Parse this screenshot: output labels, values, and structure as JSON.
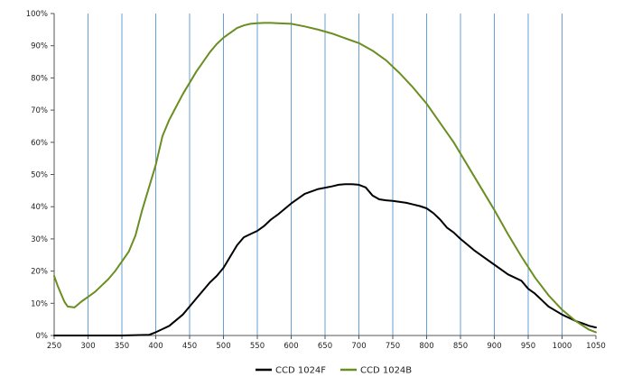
{
  "chart_data": {
    "type": "line",
    "title": "",
    "xlabel": "",
    "ylabel": "",
    "xlim": [
      250,
      1050
    ],
    "ylim": [
      0,
      100
    ],
    "x_ticks": [
      "250",
      "300",
      "350",
      "400",
      "450",
      "500",
      "550",
      "600",
      "650",
      "700",
      "750",
      "800",
      "850",
      "900",
      "950",
      "1000",
      "1050"
    ],
    "y_ticks": [
      "0%",
      "10%",
      "20%",
      "30%",
      "40%",
      "50%",
      "60%",
      "70%",
      "80%",
      "90%",
      "100%"
    ],
    "grid": {
      "vertical": true,
      "horizontal": false
    },
    "legend_position": "bottom",
    "series": [
      {
        "name": "CCD 1024F",
        "color": "#000000",
        "x": [
          250,
          300,
          350,
          390,
          400,
          410,
          420,
          440,
          450,
          460,
          470,
          480,
          490,
          500,
          510,
          520,
          530,
          540,
          550,
          560,
          570,
          580,
          600,
          620,
          640,
          660,
          670,
          680,
          690,
          700,
          710,
          720,
          730,
          740,
          750,
          770,
          780,
          790,
          800,
          810,
          820,
          830,
          840,
          850,
          870,
          880,
          900,
          910,
          920,
          940,
          950,
          960,
          970,
          980,
          1000,
          1010,
          1020,
          1030,
          1040,
          1050
        ],
        "values": [
          0,
          0,
          0,
          0.2,
          1.0,
          2.0,
          3.0,
          6.5,
          9.0,
          11.5,
          14.0,
          16.5,
          18.5,
          21.0,
          24.5,
          28.0,
          30.5,
          31.5,
          32.5,
          34.0,
          36.0,
          37.5,
          41.0,
          44.0,
          45.5,
          46.3,
          46.8,
          47.0,
          47.0,
          46.8,
          46.0,
          43.5,
          42.3,
          42.0,
          41.8,
          41.2,
          40.7,
          40.2,
          39.5,
          38.0,
          36.0,
          33.5,
          32.0,
          30.0,
          26.5,
          25.0,
          22.0,
          20.5,
          19.0,
          17.0,
          14.5,
          13.0,
          11.0,
          9.0,
          6.5,
          5.5,
          4.5,
          3.8,
          3.0,
          2.5
        ]
      },
      {
        "name": "CCD 1024B",
        "color": "#6b8e23",
        "x": [
          250,
          255,
          260,
          265,
          270,
          280,
          290,
          300,
          310,
          320,
          330,
          340,
          350,
          360,
          370,
          380,
          390,
          400,
          410,
          420,
          430,
          440,
          450,
          460,
          470,
          480,
          490,
          500,
          510,
          520,
          530,
          540,
          550,
          560,
          570,
          580,
          600,
          620,
          640,
          660,
          680,
          700,
          720,
          740,
          760,
          780,
          800,
          820,
          840,
          860,
          880,
          900,
          920,
          940,
          960,
          980,
          1000,
          1020,
          1040,
          1050
        ],
        "values": [
          18.5,
          15.5,
          13.0,
          10.5,
          9.0,
          8.7,
          10.5,
          12.0,
          13.5,
          15.5,
          17.5,
          20.0,
          23.0,
          26.0,
          31.0,
          39.0,
          46.0,
          53.0,
          62.0,
          67.0,
          71.0,
          75.0,
          78.5,
          82.0,
          85.0,
          88.0,
          90.5,
          92.5,
          94.0,
          95.5,
          96.3,
          96.8,
          97.0,
          97.1,
          97.1,
          97.0,
          96.8,
          96.0,
          95.0,
          93.8,
          92.3,
          90.8,
          88.5,
          85.5,
          81.5,
          77.0,
          72.0,
          66.0,
          60.0,
          53.0,
          46.0,
          39.0,
          31.5,
          24.5,
          18.0,
          12.5,
          8.0,
          4.5,
          1.8,
          1.0
        ]
      }
    ]
  }
}
